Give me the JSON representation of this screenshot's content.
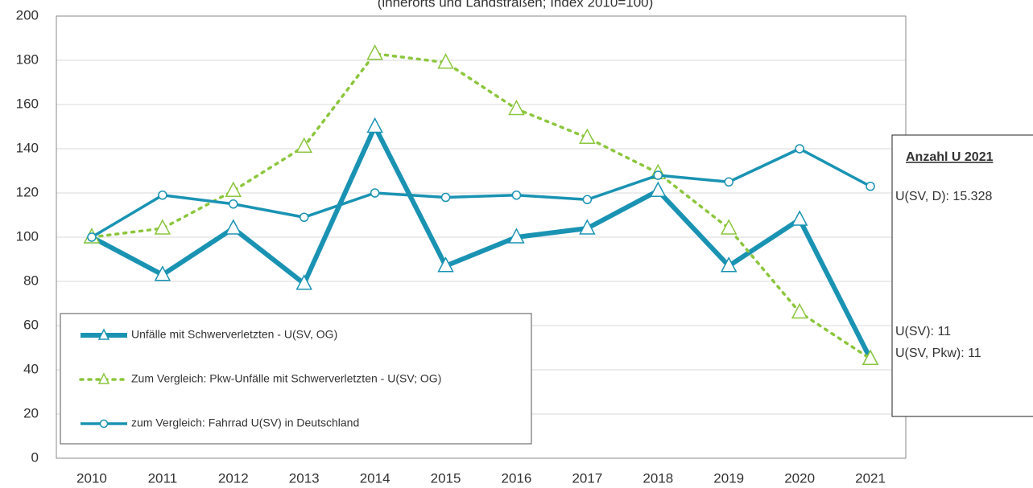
{
  "chart_data": {
    "type": "line",
    "subtitle": "(innerorts und Landstraßen; Index 2010=100)",
    "categories": [
      "2010",
      "2011",
      "2012",
      "2013",
      "2014",
      "2015",
      "2016",
      "2017",
      "2018",
      "2019",
      "2020",
      "2021"
    ],
    "series": [
      {
        "name": "Unfälle mit Schwerverletzten - U(SV, OG)",
        "color": "#1a93b3",
        "style": "thick",
        "marker": "triangle",
        "values": [
          100,
          83,
          104,
          79,
          150,
          87,
          100,
          104,
          121,
          87,
          108,
          45
        ]
      },
      {
        "name": "Zum Vergleich: Pkw-Unfälle mit Schwerverletzten - U(SV; OG)",
        "color": "#8cc63e",
        "style": "dotted",
        "marker": "triangle",
        "values": [
          100,
          104,
          121,
          141,
          183,
          179,
          158,
          145,
          129,
          104,
          66,
          45
        ]
      },
      {
        "name": "zum Vergleich: Fahrrad U(SV) in Deutschland",
        "color": "#1a93b3",
        "style": "normal",
        "marker": "circle",
        "values": [
          100,
          119,
          115,
          109,
          120,
          118,
          119,
          117,
          128,
          125,
          140,
          123
        ]
      }
    ],
    "ylim": [
      0,
      200
    ],
    "yticks": [
      0,
      20,
      40,
      60,
      80,
      100,
      120,
      140,
      160,
      180,
      200
    ],
    "grid": true,
    "legend": "bottom-left",
    "annotation": {
      "title": "Anzahl U 2021",
      "lines": [
        "U(SV, D): 15.328",
        "U(SV): 11",
        "U(SV, Pkw): 11"
      ]
    }
  }
}
